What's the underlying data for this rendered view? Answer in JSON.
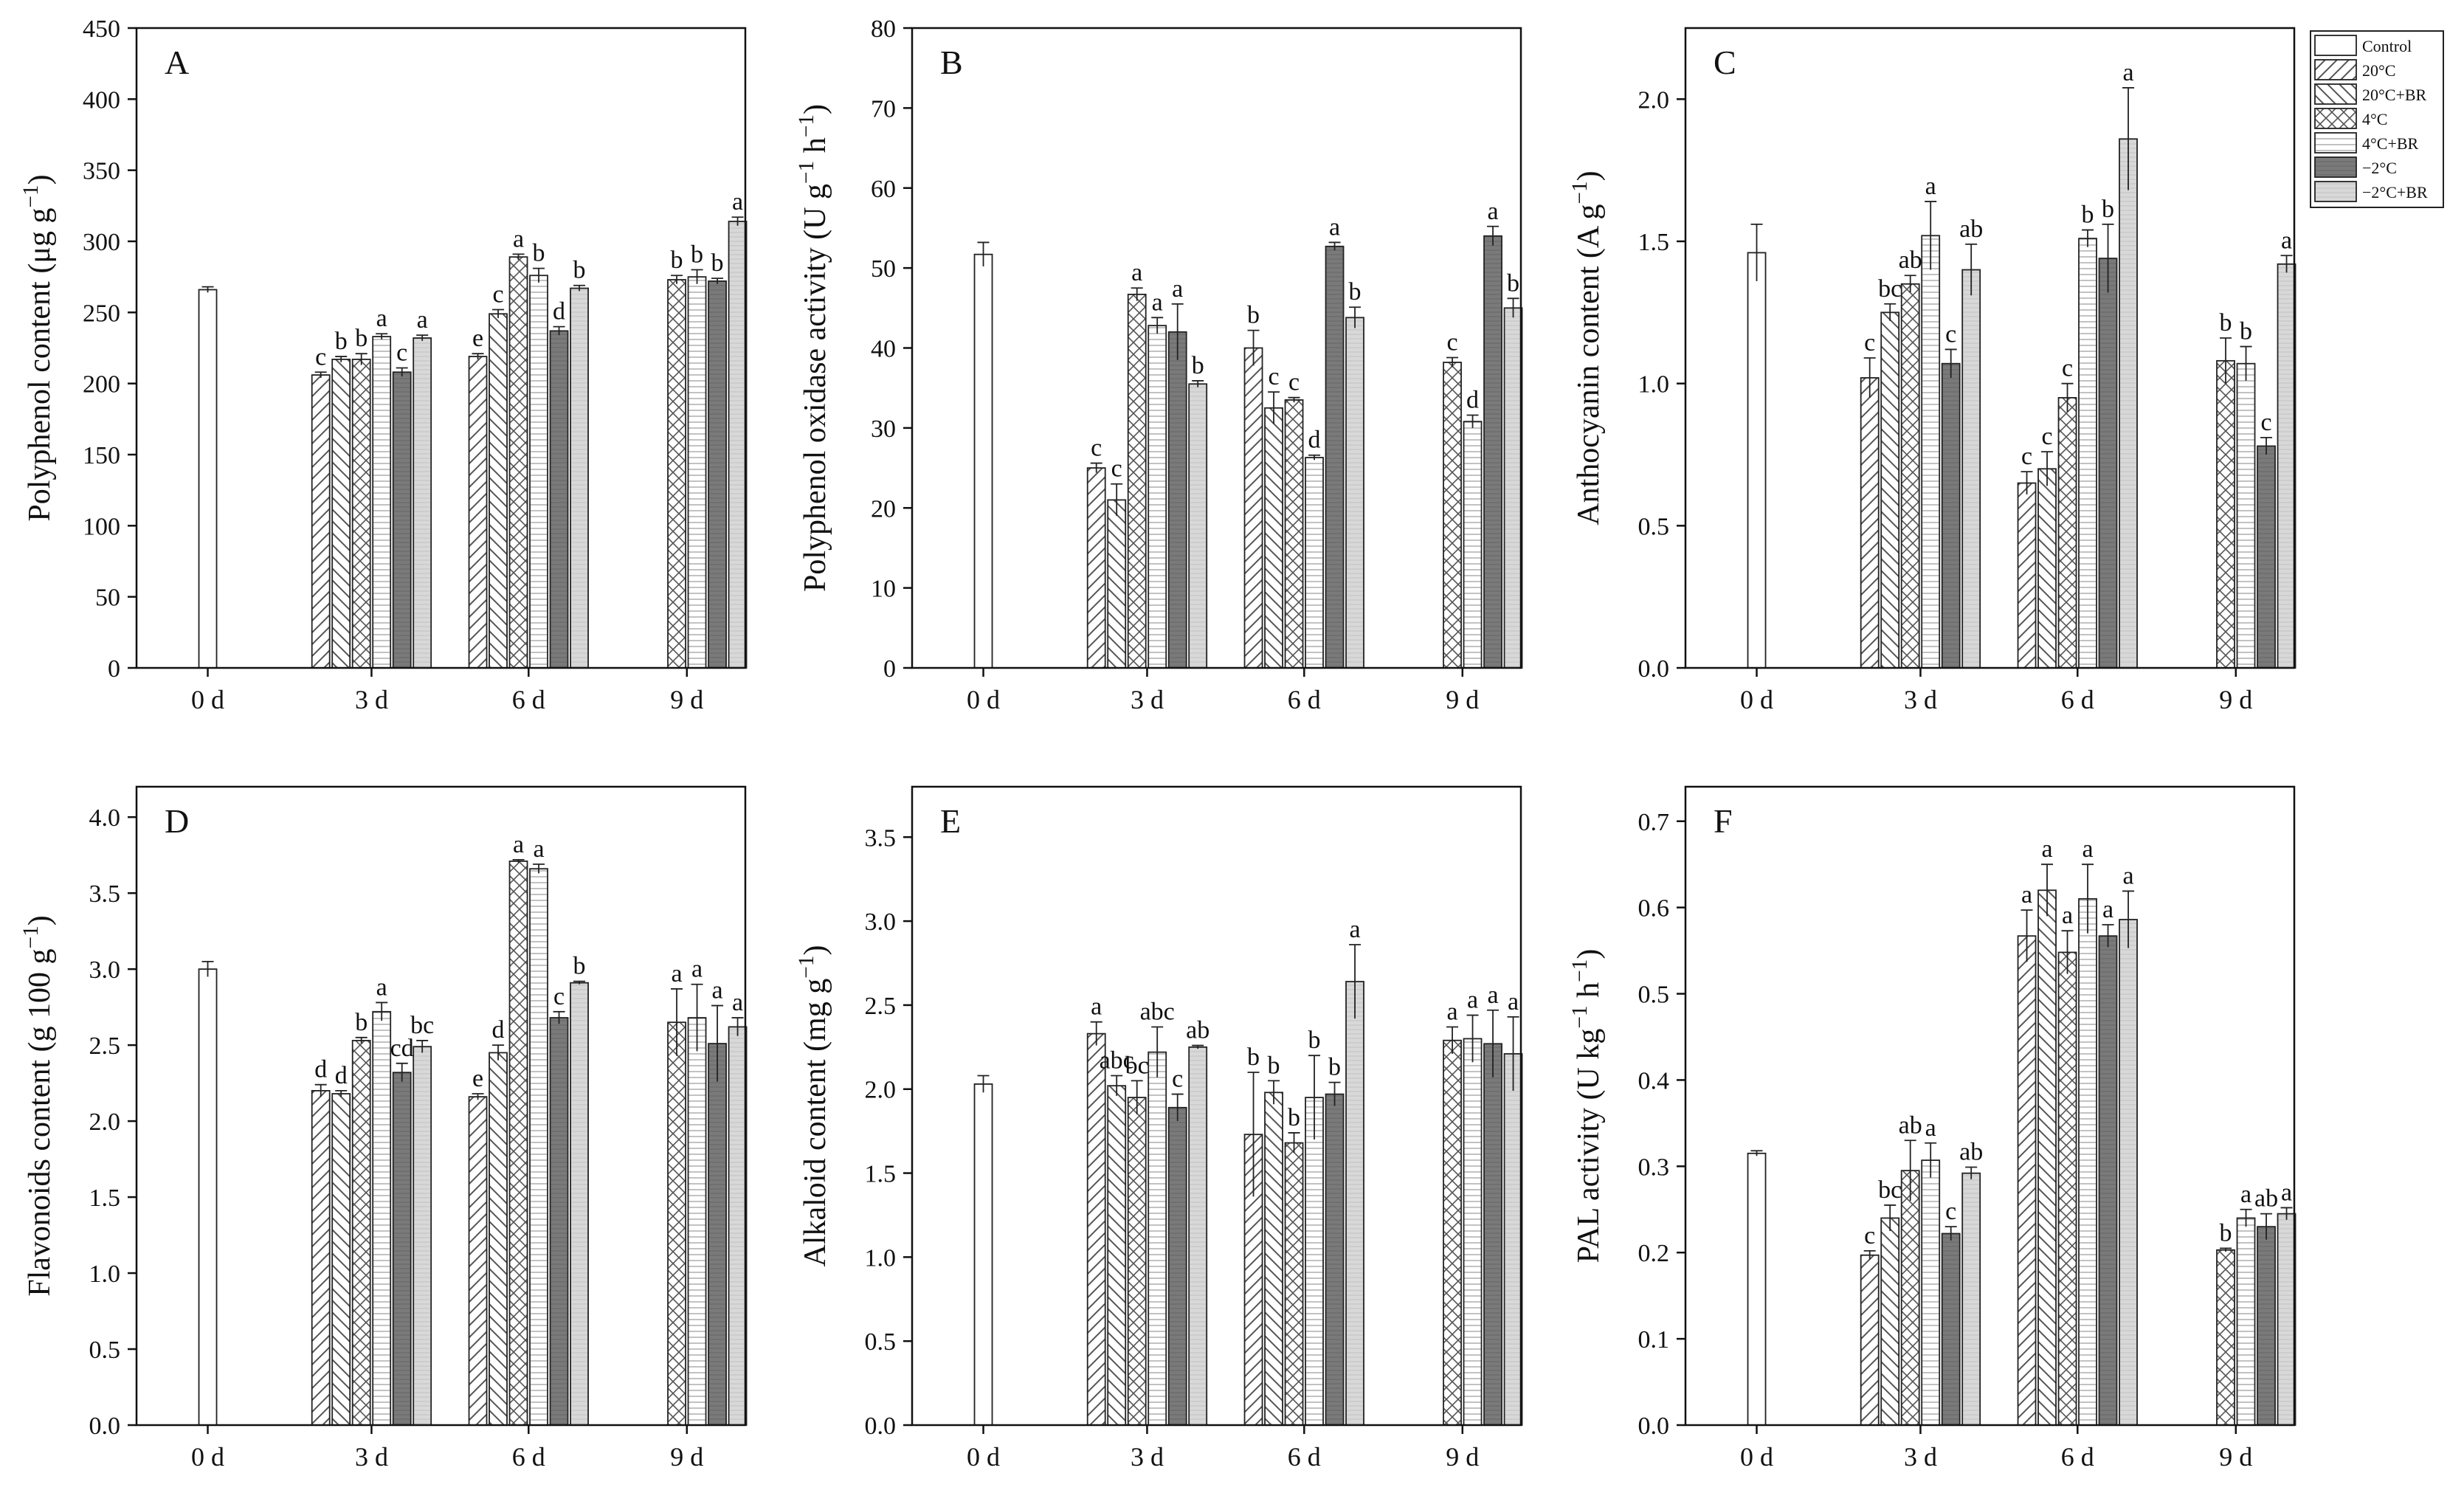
{
  "legend": {
    "entries": [
      {
        "label": "Control",
        "pattern": "none"
      },
      {
        "label": "20°C",
        "pattern": "diag-fwd"
      },
      {
        "label": "20°C+BR",
        "pattern": "diag-back"
      },
      {
        "label": "4°C",
        "pattern": "cross"
      },
      {
        "label": "4°C+BR",
        "pattern": "horizontal"
      },
      {
        "label": "−2°C",
        "pattern": "dark"
      },
      {
        "label": "−2°C+BR",
        "pattern": "light"
      }
    ]
  },
  "colors": {
    "axis": "#111111",
    "bar_stroke": "#222222",
    "dark_fill": "#7a7a7a",
    "light_fill": "#d8d8d8",
    "hatch": "#555555"
  },
  "chart_data": [
    {
      "id": "A",
      "panel_label": "A",
      "type": "bar",
      "ylabel": "Polyphenol content (μg g⁻¹)",
      "ylim": [
        0,
        450
      ],
      "yticks": [
        0,
        50,
        100,
        150,
        200,
        250,
        300,
        350,
        400,
        450
      ],
      "ytick_labels": [
        "0",
        "50",
        "100",
        "150",
        "200",
        "250",
        "300",
        "350",
        "400",
        "450"
      ],
      "categories": [
        "0 d",
        "3 d",
        "6 d",
        "9 d"
      ],
      "series": [
        {
          "name": "Control",
          "values": [
            266,
            null,
            null,
            null
          ],
          "errors": [
            2,
            null,
            null,
            null
          ],
          "letters": [
            "",
            null,
            null,
            null
          ]
        },
        {
          "name": "20°C",
          "values": [
            null,
            206,
            219,
            null
          ],
          "errors": [
            null,
            2,
            2,
            null
          ],
          "letters": [
            null,
            "c",
            "e",
            null
          ]
        },
        {
          "name": "20°C+BR",
          "values": [
            null,
            217,
            249,
            null
          ],
          "errors": [
            null,
            2,
            3,
            null
          ],
          "letters": [
            null,
            "b",
            "c",
            null
          ]
        },
        {
          "name": "4°C",
          "values": [
            null,
            217,
            289,
            273
          ],
          "errors": [
            null,
            4,
            2,
            3
          ],
          "letters": [
            null,
            "b",
            "a",
            "b"
          ]
        },
        {
          "name": "4°C+BR",
          "values": [
            null,
            233,
            276,
            275
          ],
          "errors": [
            null,
            2,
            5,
            5
          ],
          "letters": [
            null,
            "a",
            "b",
            "b"
          ]
        },
        {
          "name": "−2°C",
          "values": [
            null,
            208,
            237,
            272
          ],
          "errors": [
            null,
            3,
            3,
            2
          ],
          "letters": [
            null,
            "c",
            "d",
            "b"
          ]
        },
        {
          "name": "−2°C+BR",
          "values": [
            null,
            232,
            267,
            314
          ],
          "errors": [
            null,
            2,
            2,
            3
          ],
          "letters": [
            null,
            "a",
            "b",
            "a"
          ]
        }
      ]
    },
    {
      "id": "B",
      "panel_label": "B",
      "type": "bar",
      "ylabel": "Polyphenol oxidase activity (U g⁻¹ h⁻¹)",
      "ylim": [
        0,
        80
      ],
      "yticks": [
        0,
        10,
        20,
        30,
        40,
        50,
        60,
        70,
        80
      ],
      "ytick_labels": [
        "0",
        "10",
        "20",
        "30",
        "40",
        "50",
        "60",
        "70",
        "80"
      ],
      "categories": [
        "0 d",
        "3 d",
        "6 d",
        "9 d"
      ],
      "series": [
        {
          "name": "Control",
          "values": [
            51.7,
            null,
            null,
            null
          ],
          "errors": [
            1.5,
            null,
            null,
            null
          ],
          "letters": [
            "",
            null,
            null,
            null
          ]
        },
        {
          "name": "20°C",
          "values": [
            null,
            25,
            40,
            null
          ],
          "errors": [
            null,
            0.6,
            2.2,
            null
          ],
          "letters": [
            null,
            "c",
            "b",
            null
          ]
        },
        {
          "name": "20°C+BR",
          "values": [
            null,
            21,
            32.5,
            null
          ],
          "errors": [
            null,
            2,
            2,
            null
          ],
          "letters": [
            null,
            "c",
            "c",
            null
          ]
        },
        {
          "name": "4°C",
          "values": [
            null,
            46.7,
            33.5,
            38.2
          ],
          "errors": [
            null,
            0.8,
            0.3,
            0.6
          ],
          "letters": [
            null,
            "a",
            "c",
            "c"
          ]
        },
        {
          "name": "4°C+BR",
          "values": [
            null,
            42.8,
            26.3,
            30.8
          ],
          "errors": [
            null,
            1,
            0.3,
            0.8
          ],
          "letters": [
            null,
            "a",
            "d",
            "d"
          ]
        },
        {
          "name": "−2°C",
          "values": [
            null,
            42,
            52.7,
            54
          ],
          "errors": [
            null,
            3.5,
            0.5,
            1.2
          ],
          "letters": [
            null,
            "a",
            "a",
            "a"
          ]
        },
        {
          "name": "−2°C+BR",
          "values": [
            null,
            35.5,
            43.8,
            45
          ],
          "errors": [
            null,
            0.4,
            1.3,
            1.2
          ],
          "letters": [
            null,
            "b",
            "b",
            "b"
          ]
        }
      ]
    },
    {
      "id": "C",
      "panel_label": "C",
      "type": "bar",
      "ylabel": "Anthocyanin content (A g⁻¹)",
      "ylim": [
        0,
        2.25
      ],
      "yticks": [
        0,
        0.5,
        1.0,
        1.5,
        2.0
      ],
      "ytick_labels": [
        "0.0",
        "0.5",
        "1.0",
        "1.5",
        "2.0"
      ],
      "categories": [
        "0 d",
        "3 d",
        "6 d",
        "9 d"
      ],
      "series": [
        {
          "name": "Control",
          "values": [
            1.46,
            null,
            null,
            null
          ],
          "errors": [
            0.1,
            null,
            null,
            null
          ],
          "letters": [
            "",
            null,
            null,
            null
          ]
        },
        {
          "name": "20°C",
          "values": [
            null,
            1.02,
            0.65,
            null
          ],
          "errors": [
            null,
            0.07,
            0.04,
            null
          ],
          "letters": [
            null,
            "c",
            "c",
            null
          ]
        },
        {
          "name": "20°C+BR",
          "values": [
            null,
            1.25,
            0.7,
            null
          ],
          "errors": [
            null,
            0.03,
            0.06,
            null
          ],
          "letters": [
            null,
            "bc",
            "c",
            null
          ]
        },
        {
          "name": "4°C",
          "values": [
            null,
            1.35,
            0.95,
            1.08
          ],
          "errors": [
            null,
            0.03,
            0.05,
            0.08
          ],
          "letters": [
            null,
            "ab",
            "c",
            "b"
          ]
        },
        {
          "name": "4°C+BR",
          "values": [
            null,
            1.52,
            1.51,
            1.07
          ],
          "errors": [
            null,
            0.12,
            0.03,
            0.06
          ],
          "letters": [
            null,
            "a",
            "b",
            "b"
          ]
        },
        {
          "name": "−2°C",
          "values": [
            null,
            1.07,
            1.44,
            0.78
          ],
          "errors": [
            null,
            0.05,
            0.12,
            0.03
          ],
          "letters": [
            null,
            "c",
            "b",
            "c"
          ]
        },
        {
          "name": "−2°C+BR",
          "values": [
            null,
            1.4,
            1.86,
            1.42
          ],
          "errors": [
            null,
            0.09,
            0.18,
            0.03
          ],
          "letters": [
            null,
            "ab",
            "a",
            "a"
          ]
        }
      ]
    },
    {
      "id": "D",
      "panel_label": "D",
      "type": "bar",
      "ylabel": "Flavonoids content (g 100 g⁻¹)",
      "ylim": [
        0,
        4.2
      ],
      "yticks": [
        0,
        0.5,
        1.0,
        1.5,
        2.0,
        2.5,
        3.0,
        3.5,
        4.0
      ],
      "ytick_labels": [
        "0.0",
        "0.5",
        "1.0",
        "1.5",
        "2.0",
        "2.5",
        "3.0",
        "3.5",
        "4.0"
      ],
      "categories": [
        "0 d",
        "3 d",
        "6 d",
        "9 d"
      ],
      "series": [
        {
          "name": "Control",
          "values": [
            3.0,
            null,
            null,
            null
          ],
          "errors": [
            0.05,
            null,
            null,
            null
          ],
          "letters": [
            "",
            null,
            null,
            null
          ]
        },
        {
          "name": "20°C",
          "values": [
            null,
            2.2,
            2.16,
            null
          ],
          "errors": [
            null,
            0.04,
            0.02,
            null
          ],
          "letters": [
            null,
            "d",
            "e",
            null
          ]
        },
        {
          "name": "20°C+BR",
          "values": [
            null,
            2.18,
            2.45,
            null
          ],
          "errors": [
            null,
            0.02,
            0.05,
            null
          ],
          "letters": [
            null,
            "d",
            "d",
            null
          ]
        },
        {
          "name": "4°C",
          "values": [
            null,
            2.53,
            3.71,
            2.65
          ],
          "errors": [
            null,
            0.02,
            0.01,
            0.22
          ],
          "letters": [
            null,
            "b",
            "a",
            "a"
          ]
        },
        {
          "name": "4°C+BR",
          "values": [
            null,
            2.72,
            3.66,
            2.68
          ],
          "errors": [
            null,
            0.06,
            0.03,
            0.22
          ],
          "letters": [
            null,
            "a",
            "a",
            "a"
          ]
        },
        {
          "name": "−2°C",
          "values": [
            null,
            2.32,
            2.68,
            2.51
          ],
          "errors": [
            null,
            0.06,
            0.04,
            0.25
          ],
          "letters": [
            null,
            "cd",
            "c",
            "a"
          ]
        },
        {
          "name": "−2°C+BR",
          "values": [
            null,
            2.49,
            2.91,
            2.62
          ],
          "errors": [
            null,
            0.04,
            0.01,
            0.06
          ],
          "letters": [
            null,
            "bc",
            "b",
            "a"
          ]
        }
      ]
    },
    {
      "id": "E",
      "panel_label": "E",
      "type": "bar",
      "ylabel": "Alkaloid content (mg g⁻¹)",
      "ylim": [
        0,
        3.8
      ],
      "yticks": [
        0,
        0.5,
        1.0,
        1.5,
        2.0,
        2.5,
        3.0,
        3.5
      ],
      "ytick_labels": [
        "0.0",
        "0.5",
        "1.0",
        "1.5",
        "2.0",
        "2.5",
        "3.0",
        "3.5"
      ],
      "categories": [
        "0 d",
        "3 d",
        "6 d",
        "9 d"
      ],
      "series": [
        {
          "name": "Control",
          "values": [
            2.03,
            null,
            null,
            null
          ],
          "errors": [
            0.05,
            null,
            null,
            null
          ],
          "letters": [
            "",
            null,
            null,
            null
          ]
        },
        {
          "name": "20°C",
          "values": [
            null,
            2.33,
            1.73,
            null
          ],
          "errors": [
            null,
            0.07,
            0.37,
            null
          ],
          "letters": [
            null,
            "a",
            "b",
            null
          ]
        },
        {
          "name": "20°C+BR",
          "values": [
            null,
            2.02,
            1.98,
            null
          ],
          "errors": [
            null,
            0.06,
            0.07,
            null
          ],
          "letters": [
            null,
            "abc",
            "b",
            null
          ]
        },
        {
          "name": "4°C",
          "values": [
            null,
            1.95,
            1.68,
            2.29
          ],
          "errors": [
            null,
            0.1,
            0.06,
            0.08
          ],
          "letters": [
            null,
            "bc",
            "b",
            "a"
          ]
        },
        {
          "name": "4°C+BR",
          "values": [
            null,
            2.22,
            1.95,
            2.3
          ],
          "errors": [
            null,
            0.15,
            0.25,
            0.14
          ],
          "letters": [
            null,
            "abc",
            "b",
            "a"
          ]
        },
        {
          "name": "−2°C",
          "values": [
            null,
            1.89,
            1.97,
            2.27
          ],
          "errors": [
            null,
            0.08,
            0.07,
            0.2
          ],
          "letters": [
            null,
            "c",
            "b",
            "a"
          ]
        },
        {
          "name": "−2°C+BR",
          "values": [
            null,
            2.25,
            2.64,
            2.21
          ],
          "errors": [
            null,
            0.01,
            0.22,
            0.22
          ],
          "letters": [
            null,
            "ab",
            "a",
            "a"
          ]
        }
      ]
    },
    {
      "id": "F",
      "panel_label": "F",
      "type": "bar",
      "ylabel": "PAL activity (U kg⁻¹ h⁻¹)",
      "ylim": [
        0,
        0.74
      ],
      "yticks": [
        0,
        0.1,
        0.2,
        0.3,
        0.4,
        0.5,
        0.6,
        0.7
      ],
      "ytick_labels": [
        "0.0",
        "0.1",
        "0.2",
        "0.3",
        "0.4",
        "0.5",
        "0.6",
        "0.7"
      ],
      "categories": [
        "0 d",
        "3 d",
        "6 d",
        "9 d"
      ],
      "series": [
        {
          "name": "Control",
          "values": [
            0.315,
            null,
            null,
            null
          ],
          "errors": [
            0.003,
            null,
            null,
            null
          ],
          "letters": [
            "",
            null,
            null,
            null
          ]
        },
        {
          "name": "20°C",
          "values": [
            null,
            0.197,
            0.567,
            null
          ],
          "errors": [
            null,
            0.005,
            0.03,
            null
          ],
          "letters": [
            null,
            "c",
            "a",
            null
          ]
        },
        {
          "name": "20°C+BR",
          "values": [
            null,
            0.24,
            0.62,
            null
          ],
          "errors": [
            null,
            0.015,
            0.03,
            null
          ],
          "letters": [
            null,
            "bc",
            "a",
            null
          ]
        },
        {
          "name": "4°C",
          "values": [
            null,
            0.295,
            0.548,
            0.203
          ],
          "errors": [
            null,
            0.035,
            0.025,
            0.002
          ],
          "letters": [
            null,
            "ab",
            "a",
            "b"
          ]
        },
        {
          "name": "4°C+BR",
          "values": [
            null,
            0.307,
            0.61,
            0.24
          ],
          "errors": [
            null,
            0.02,
            0.04,
            0.01
          ],
          "letters": [
            null,
            "a",
            "a",
            "a"
          ]
        },
        {
          "name": "−2°C",
          "values": [
            null,
            0.222,
            0.567,
            0.23
          ],
          "errors": [
            null,
            0.008,
            0.013,
            0.015
          ],
          "letters": [
            null,
            "c",
            "a",
            "ab"
          ]
        },
        {
          "name": "−2°C+BR",
          "values": [
            null,
            0.292,
            0.586,
            0.245
          ],
          "errors": [
            null,
            0.007,
            0.033,
            0.007
          ],
          "letters": [
            null,
            "ab",
            "a",
            "a"
          ]
        }
      ]
    }
  ]
}
